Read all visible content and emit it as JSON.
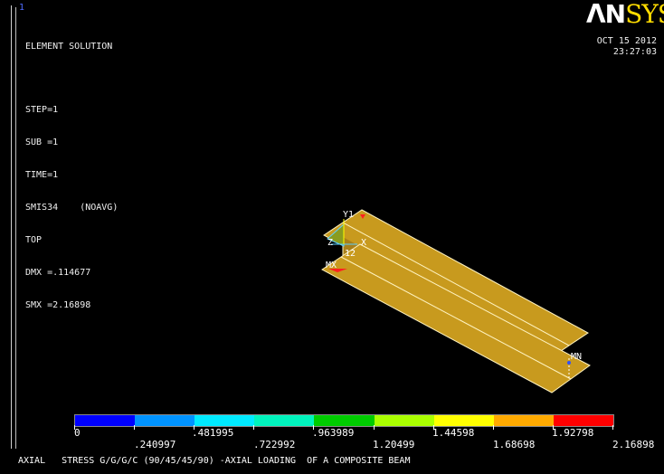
{
  "window_number": "1",
  "info": {
    "line1": "ELEMENT SOLUTION",
    "step": "STEP=1",
    "sub": "SUB =1",
    "time": "TIME=1",
    "item": "SMIS34    (NOAVG)",
    "layer": "TOP",
    "dmx": "DMX =.114677",
    "smx": "SMX =2.16898"
  },
  "logo": {
    "an": "ΛN",
    "sys": "SYS"
  },
  "date": {
    "day": "OCT 15 2012",
    "time": "23:27:03"
  },
  "labels": {
    "y1": "Y1",
    "x": "X",
    "z": "Z",
    "node12": "12",
    "mx": "MX",
    "mn": "MN"
  },
  "legend": {
    "colors": [
      "#0000ff",
      "#0093ff",
      "#00eaff",
      "#00f3bd",
      "#00cc00",
      "#aaff00",
      "#ffff00",
      "#ffaa00",
      "#ff0000"
    ],
    "values_top": [
      "0",
      ".481995",
      ".963989",
      "1.44598",
      "1.92798"
    ],
    "values_bottom": [
      ".240997",
      ".722992",
      "1.20499",
      "1.68698",
      "2.16898"
    ]
  },
  "title_line": "AXIAL   STRESS G/G/G/C (90/45/45/90) -AXIAL LOADING  OF A COMPOSITE BEAM",
  "colors": {
    "beam_fill": "#c89a1e",
    "beam_edge": "#fff3c0",
    "logo_sys": "#ffdc00"
  }
}
